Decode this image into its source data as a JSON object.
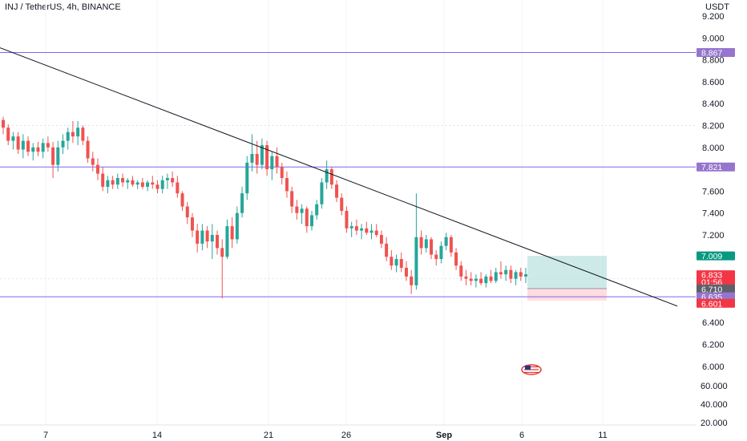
{
  "header": {
    "title": "INJ / TetherUS, 4h, BINANCE"
  },
  "colors": {
    "up": "#26a69a",
    "down": "#ef5350",
    "level_line": "#7b68ee",
    "level_tag": "#9575cd",
    "trendline": "#131722",
    "profit": "#b2dfdb",
    "loss": "#ffcdd2",
    "price_tag": "#f23645",
    "target_tag": "#089981",
    "gray_tag": "#5d606b",
    "grid": "#e0e3eb"
  },
  "chart_data": {
    "type": "candlestick",
    "quote_label": "USDT",
    "y_ticks": [
      "9.200",
      "9.000",
      "8.800",
      "8.600",
      "8.400",
      "8.200",
      "8.000",
      "7.600",
      "7.400",
      "7.200",
      "6.400",
      "6.200",
      "6.000"
    ],
    "lower_ticks": [
      "60.000",
      "40.000",
      "20.000"
    ],
    "x_ticks": [
      "7",
      "14",
      "21",
      "26",
      "Sep",
      "6",
      "11"
    ],
    "horizontal_levels": [
      8.867,
      7.821,
      6.635
    ],
    "price_tags": [
      {
        "label": "8.867",
        "value": 8.867,
        "kind": "level"
      },
      {
        "label": "7.821",
        "value": 7.821,
        "kind": "level"
      },
      {
        "label": "7.009",
        "value": 7.009,
        "kind": "target"
      },
      {
        "label": "6.833",
        "value": 6.833,
        "kind": "price",
        "sub": "01:56"
      },
      {
        "label": "6.710",
        "value": 6.71,
        "kind": "gray"
      },
      {
        "label": "6.635",
        "value": 6.635,
        "kind": "level"
      },
      {
        "label": "6.601",
        "value": 6.601,
        "kind": "stop"
      }
    ],
    "trendline": {
      "from": [
        0,
        8.91
      ],
      "to": [
        1.0,
        6.55
      ]
    },
    "position": {
      "entry": 6.71,
      "target": 7.009,
      "stop": 6.601
    },
    "ohlc": [
      [
        8.25,
        8.28,
        8.12,
        8.18
      ],
      [
        8.18,
        8.21,
        8.02,
        8.06
      ],
      [
        8.06,
        8.14,
        7.98,
        8.1
      ],
      [
        8.1,
        8.14,
        7.94,
        7.98
      ],
      [
        7.98,
        8.12,
        7.9,
        8.06
      ],
      [
        8.06,
        8.1,
        7.92,
        7.96
      ],
      [
        7.96,
        8.04,
        7.88,
        8.0
      ],
      [
        8.0,
        8.05,
        7.92,
        7.96
      ],
      [
        7.96,
        8.08,
        7.9,
        8.04
      ],
      [
        8.04,
        8.1,
        7.96,
        8.0
      ],
      [
        8.0,
        8.05,
        7.72,
        7.84
      ],
      [
        7.84,
        8.06,
        7.78,
        8.0
      ],
      [
        8.0,
        8.12,
        7.94,
        8.06
      ],
      [
        8.06,
        8.18,
        7.98,
        8.14
      ],
      [
        8.14,
        8.24,
        8.04,
        8.1
      ],
      [
        8.1,
        8.24,
        8.02,
        8.18
      ],
      [
        8.18,
        8.2,
        8.02,
        8.06
      ],
      [
        8.06,
        8.1,
        7.86,
        7.9
      ],
      [
        7.9,
        7.96,
        7.78,
        7.84
      ],
      [
        7.84,
        7.9,
        7.7,
        7.76
      ],
      [
        7.76,
        7.82,
        7.6,
        7.64
      ],
      [
        7.64,
        7.74,
        7.58,
        7.7
      ],
      [
        7.7,
        7.74,
        7.62,
        7.66
      ],
      [
        7.66,
        7.76,
        7.62,
        7.72
      ],
      [
        7.72,
        7.76,
        7.64,
        7.68
      ],
      [
        7.68,
        7.72,
        7.62,
        7.7
      ],
      [
        7.7,
        7.74,
        7.64,
        7.66
      ],
      [
        7.66,
        7.7,
        7.62,
        7.68
      ],
      [
        7.68,
        7.72,
        7.62,
        7.64
      ],
      [
        7.64,
        7.7,
        7.6,
        7.68
      ],
      [
        7.68,
        7.74,
        7.62,
        7.66
      ],
      [
        7.66,
        7.7,
        7.58,
        7.62
      ],
      [
        7.62,
        7.74,
        7.58,
        7.7
      ],
      [
        7.7,
        7.76,
        7.62,
        7.72
      ],
      [
        7.72,
        7.78,
        7.64,
        7.68
      ],
      [
        7.68,
        7.74,
        7.54,
        7.58
      ],
      [
        7.58,
        7.6,
        7.42,
        7.46
      ],
      [
        7.46,
        7.5,
        7.3,
        7.36
      ],
      [
        7.36,
        7.4,
        7.18,
        7.24
      ],
      [
        7.24,
        7.3,
        7.04,
        7.12
      ],
      [
        7.12,
        7.3,
        7.06,
        7.24
      ],
      [
        7.24,
        7.28,
        7.08,
        7.14
      ],
      [
        7.14,
        7.3,
        6.98,
        7.2
      ],
      [
        7.2,
        7.24,
        7.02,
        7.08
      ],
      [
        7.08,
        7.16,
        6.62,
        7.0
      ],
      [
        7.0,
        7.34,
        6.98,
        7.28
      ],
      [
        7.28,
        7.36,
        7.08,
        7.16
      ],
      [
        7.16,
        7.46,
        7.12,
        7.4
      ],
      [
        7.4,
        7.64,
        7.36,
        7.58
      ],
      [
        7.58,
        7.92,
        7.52,
        7.86
      ],
      [
        7.86,
        8.12,
        7.78,
        7.94
      ],
      [
        7.94,
        8.06,
        7.76,
        7.84
      ],
      [
        7.84,
        8.08,
        7.8,
        8.02
      ],
      [
        8.02,
        8.06,
        7.74,
        7.8
      ],
      [
        7.8,
        7.96,
        7.7,
        7.92
      ],
      [
        7.92,
        8.0,
        7.76,
        7.82
      ],
      [
        7.82,
        7.86,
        7.66,
        7.72
      ],
      [
        7.72,
        7.78,
        7.54,
        7.6
      ],
      [
        7.6,
        7.64,
        7.4,
        7.46
      ],
      [
        7.46,
        7.52,
        7.34,
        7.4
      ],
      [
        7.4,
        7.48,
        7.3,
        7.44
      ],
      [
        7.44,
        7.46,
        7.22,
        7.28
      ],
      [
        7.28,
        7.42,
        7.24,
        7.38
      ],
      [
        7.38,
        7.52,
        7.34,
        7.48
      ],
      [
        7.48,
        7.72,
        7.44,
        7.68
      ],
      [
        7.68,
        7.88,
        7.62,
        7.8
      ],
      [
        7.8,
        7.82,
        7.62,
        7.66
      ],
      [
        7.66,
        7.7,
        7.5,
        7.54
      ],
      [
        7.54,
        7.58,
        7.38,
        7.42
      ],
      [
        7.42,
        7.46,
        7.22,
        7.26
      ],
      [
        7.26,
        7.32,
        7.18,
        7.28
      ],
      [
        7.28,
        7.34,
        7.2,
        7.24
      ],
      [
        7.24,
        7.3,
        7.16,
        7.26
      ],
      [
        7.26,
        7.32,
        7.2,
        7.22
      ],
      [
        7.22,
        7.3,
        7.16,
        7.24
      ],
      [
        7.24,
        7.3,
        7.18,
        7.2
      ],
      [
        7.2,
        7.24,
        7.08,
        7.12
      ],
      [
        7.12,
        7.18,
        6.96,
        7.0
      ],
      [
        7.0,
        7.06,
        6.88,
        6.92
      ],
      [
        6.92,
        7.02,
        6.86,
        6.98
      ],
      [
        6.98,
        7.04,
        6.86,
        6.9
      ],
      [
        6.9,
        6.96,
        6.78,
        6.82
      ],
      [
        6.82,
        6.88,
        6.66,
        6.74
      ],
      [
        6.74,
        7.58,
        6.7,
        7.18
      ],
      [
        7.18,
        7.24,
        7.02,
        7.08
      ],
      [
        7.08,
        7.2,
        7.04,
        7.16
      ],
      [
        7.16,
        7.18,
        6.98,
        7.02
      ],
      [
        7.02,
        7.06,
        6.92,
        6.98
      ],
      [
        6.98,
        7.14,
        6.94,
        7.1
      ],
      [
        7.1,
        7.22,
        7.06,
        7.18
      ],
      [
        7.18,
        7.2,
        7.0,
        7.04
      ],
      [
        7.04,
        7.08,
        6.88,
        6.92
      ],
      [
        6.92,
        6.96,
        6.78,
        6.82
      ],
      [
        6.82,
        6.88,
        6.74,
        6.8
      ],
      [
        6.8,
        6.86,
        6.74,
        6.78
      ],
      [
        6.78,
        6.84,
        6.72,
        6.8
      ],
      [
        6.8,
        6.86,
        6.74,
        6.76
      ],
      [
        6.76,
        6.84,
        6.72,
        6.82
      ],
      [
        6.82,
        6.88,
        6.76,
        6.78
      ],
      [
        6.78,
        6.9,
        6.76,
        6.86
      ],
      [
        6.86,
        6.96,
        6.8,
        6.84
      ],
      [
        6.84,
        6.92,
        6.78,
        6.88
      ],
      [
        6.88,
        6.92,
        6.76,
        6.8
      ],
      [
        6.8,
        6.88,
        6.74,
        6.86
      ],
      [
        6.86,
        6.9,
        6.78,
        6.82
      ],
      [
        6.82,
        6.9,
        6.76,
        6.84
      ]
    ]
  },
  "watermark": {
    "icon": "tradingview-flag-icon"
  }
}
